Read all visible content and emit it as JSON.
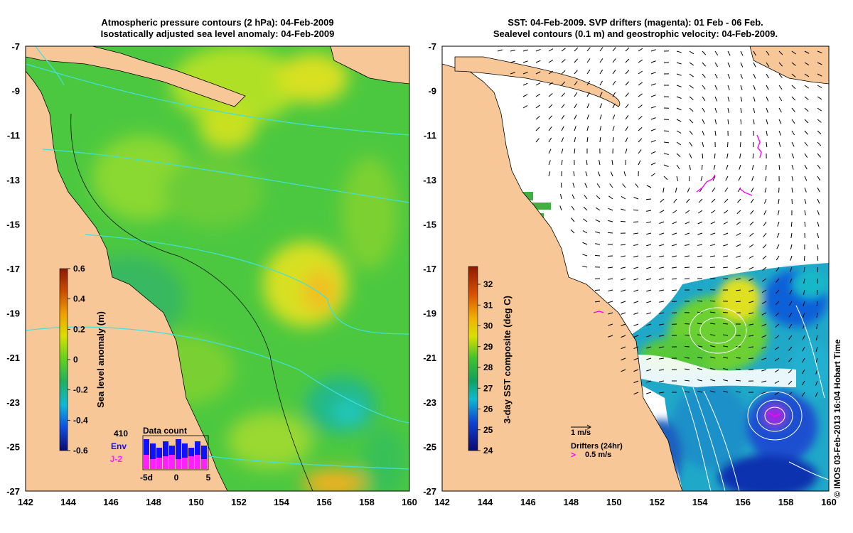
{
  "left_panel": {
    "title_line1": "Atmospheric pressure contours (2 hPa): 04-Feb-2009",
    "title_line2": "Isostatically adjusted sea level anomaly: 04-Feb-2009",
    "colorbar_label": "Sea level anomaly (m)",
    "colorbar_ticks": [
      "0.6",
      "0.4",
      "0.2",
      "0",
      "-0.2",
      "-0.4",
      "-0.6"
    ],
    "colorbar_values": [
      0.6,
      0.4,
      0.2,
      0,
      -0.2,
      -0.4,
      -0.6
    ],
    "inset": {
      "total": "410",
      "sat1": "Env",
      "sat2": "J-2",
      "title": "Data count",
      "xticks": [
        "-5d",
        "0",
        "5"
      ],
      "sat1_color": "#1010ff",
      "sat2_color": "#ff20ff"
    }
  },
  "right_panel": {
    "title_line1": "SST: 04-Feb-2009. SVP drifters (magenta): 01 Feb - 06 Feb.",
    "title_line2": "Sealevel contours (0.1 m) and geostrophic velocity: 04-Feb-2009.",
    "colorbar_label": "3-day SST composite (deg C)",
    "colorbar_ticks": [
      "32",
      "31",
      "30",
      "29",
      "28",
      "27",
      "26",
      "25",
      "24"
    ],
    "colorbar_values": [
      32,
      31,
      30,
      29,
      28,
      27,
      26,
      25,
      24
    ],
    "vector_scale": "1 m/s",
    "drifter_label": "Drifters (24hr)",
    "drifter_scale_symbol": ">",
    "drifter_scale": "0.5 m/s"
  },
  "axes": {
    "lon_ticks": [
      "142",
      "144",
      "146",
      "148",
      "150",
      "152",
      "154",
      "156",
      "158",
      "160"
    ],
    "lat_ticks": [
      "-7",
      "-9",
      "-11",
      "-13",
      "-15",
      "-17",
      "-19",
      "-21",
      "-23",
      "-25",
      "-27"
    ],
    "lon_range": [
      142,
      160
    ],
    "lat_range": [
      -27,
      -7
    ]
  },
  "credit": "© IMOS 03-Feb-2013 16:04 Hobart Time",
  "colors": {
    "land": "#f7c797",
    "ocean_base": "#3cc63c",
    "isobar": "#40e0e0",
    "drifter": "#ff00ff"
  }
}
